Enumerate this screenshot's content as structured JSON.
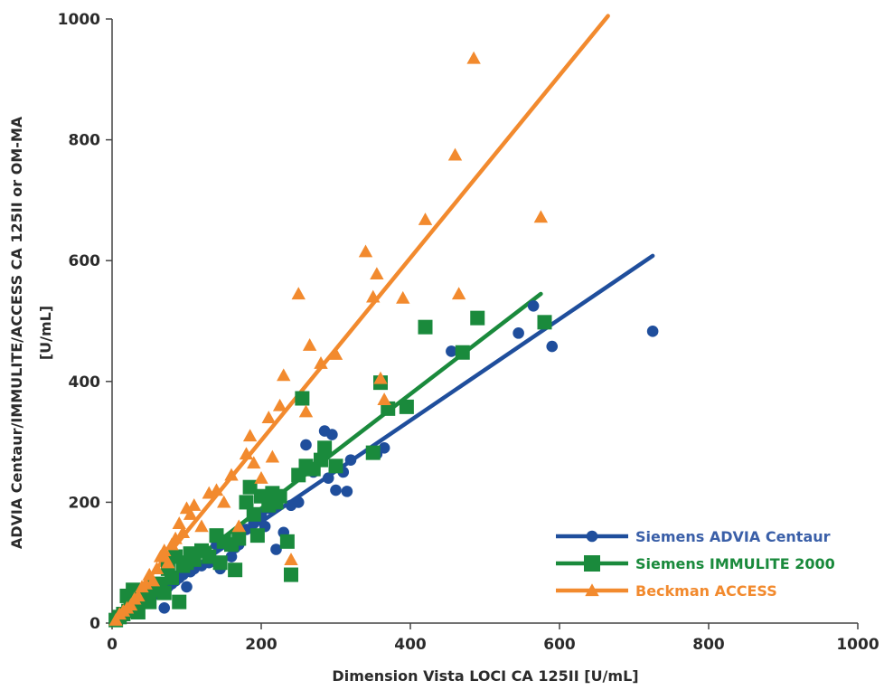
{
  "chart_data": {
    "type": "scatter",
    "title": "",
    "xlabel": "Dimension Vista LOCI CA 125II [U/mL]",
    "ylabel_line1": "ADVIA Centaur/IMMULITE/ACCESS CA 125II or OM-MA",
    "ylabel_line2": "[U/mL]",
    "xlim": [
      0,
      1000
    ],
    "ylim": [
      0,
      1000
    ],
    "xticks": [
      "0",
      "200",
      "400",
      "600",
      "800",
      "1000"
    ],
    "yticks": [
      "0",
      "200",
      "400",
      "600",
      "800",
      "1000"
    ],
    "legend_position": "bottom-right",
    "grid": false,
    "series": [
      {
        "name": "Siemens ADVIA Centaur",
        "color": "#1f4e9c",
        "label_color": "#3a5fa8",
        "marker": "circle",
        "fit_line": [
          [
            0,
            0
          ],
          [
            725,
            608
          ]
        ],
        "points": [
          [
            5,
            5
          ],
          [
            8,
            8
          ],
          [
            10,
            10
          ],
          [
            12,
            12
          ],
          [
            15,
            14
          ],
          [
            18,
            17
          ],
          [
            20,
            20
          ],
          [
            22,
            23
          ],
          [
            25,
            20
          ],
          [
            28,
            25
          ],
          [
            30,
            30
          ],
          [
            35,
            28
          ],
          [
            40,
            35
          ],
          [
            45,
            40
          ],
          [
            50,
            45
          ],
          [
            55,
            50
          ],
          [
            60,
            48
          ],
          [
            65,
            55
          ],
          [
            70,
            25
          ],
          [
            75,
            60
          ],
          [
            80,
            65
          ],
          [
            85,
            70
          ],
          [
            90,
            75
          ],
          [
            95,
            80
          ],
          [
            100,
            60
          ],
          [
            105,
            85
          ],
          [
            110,
            90
          ],
          [
            120,
            95
          ],
          [
            130,
            100
          ],
          [
            140,
            130
          ],
          [
            145,
            90
          ],
          [
            150,
            135
          ],
          [
            160,
            110
          ],
          [
            165,
            125
          ],
          [
            170,
            130
          ],
          [
            180,
            155
          ],
          [
            190,
            165
          ],
          [
            200,
            180
          ],
          [
            205,
            160
          ],
          [
            210,
            190
          ],
          [
            220,
            122
          ],
          [
            230,
            150
          ],
          [
            240,
            195
          ],
          [
            250,
            200
          ],
          [
            260,
            295
          ],
          [
            270,
            250
          ],
          [
            285,
            318
          ],
          [
            290,
            240
          ],
          [
            295,
            312
          ],
          [
            300,
            220
          ],
          [
            310,
            250
          ],
          [
            315,
            218
          ],
          [
            320,
            270
          ],
          [
            355,
            280
          ],
          [
            365,
            290
          ],
          [
            455,
            450
          ],
          [
            545,
            480
          ],
          [
            565,
            525
          ],
          [
            590,
            458
          ],
          [
            725,
            483
          ]
        ]
      },
      {
        "name": "Siemens IMMULITE 2000",
        "color": "#1a8a3c",
        "label_color": "#1a8a3c",
        "marker": "square",
        "fit_line": [
          [
            0,
            0
          ],
          [
            575,
            545
          ]
        ],
        "points": [
          [
            5,
            5
          ],
          [
            10,
            10
          ],
          [
            15,
            15
          ],
          [
            20,
            45
          ],
          [
            22,
            20
          ],
          [
            25,
            25
          ],
          [
            28,
            55
          ],
          [
            30,
            30
          ],
          [
            35,
            18
          ],
          [
            40,
            40
          ],
          [
            45,
            50
          ],
          [
            50,
            35
          ],
          [
            55,
            60
          ],
          [
            60,
            55
          ],
          [
            65,
            65
          ],
          [
            70,
            50
          ],
          [
            75,
            90
          ],
          [
            80,
            75
          ],
          [
            85,
            110
          ],
          [
            90,
            35
          ],
          [
            95,
            95
          ],
          [
            100,
            100
          ],
          [
            105,
            115
          ],
          [
            110,
            105
          ],
          [
            120,
            120
          ],
          [
            130,
            110
          ],
          [
            140,
            145
          ],
          [
            145,
            100
          ],
          [
            150,
            135
          ],
          [
            160,
            130
          ],
          [
            165,
            88
          ],
          [
            170,
            140
          ],
          [
            180,
            200
          ],
          [
            185,
            225
          ],
          [
            190,
            180
          ],
          [
            195,
            145
          ],
          [
            200,
            210
          ],
          [
            210,
            195
          ],
          [
            215,
            215
          ],
          [
            220,
            200
          ],
          [
            225,
            210
          ],
          [
            235,
            135
          ],
          [
            240,
            80
          ],
          [
            250,
            245
          ],
          [
            255,
            372
          ],
          [
            260,
            260
          ],
          [
            270,
            255
          ],
          [
            280,
            270
          ],
          [
            285,
            290
          ],
          [
            300,
            260
          ],
          [
            350,
            282
          ],
          [
            360,
            398
          ],
          [
            370,
            355
          ],
          [
            395,
            358
          ],
          [
            420,
            490
          ],
          [
            470,
            448
          ],
          [
            490,
            505
          ],
          [
            580,
            498
          ]
        ]
      },
      {
        "name": "Beckman ACCESS",
        "color": "#f28a2e",
        "label_color": "#f28a2e",
        "marker": "triangle",
        "fit_line": [
          [
            0,
            0
          ],
          [
            665,
            1005
          ]
        ],
        "points": [
          [
            5,
            5
          ],
          [
            10,
            15
          ],
          [
            15,
            20
          ],
          [
            20,
            25
          ],
          [
            25,
            30
          ],
          [
            30,
            40
          ],
          [
            35,
            45
          ],
          [
            40,
            60
          ],
          [
            45,
            65
          ],
          [
            50,
            80
          ],
          [
            55,
            70
          ],
          [
            60,
            90
          ],
          [
            65,
            110
          ],
          [
            70,
            120
          ],
          [
            75,
            100
          ],
          [
            80,
            130
          ],
          [
            85,
            140
          ],
          [
            90,
            165
          ],
          [
            95,
            150
          ],
          [
            100,
            190
          ],
          [
            105,
            180
          ],
          [
            110,
            195
          ],
          [
            120,
            160
          ],
          [
            130,
            215
          ],
          [
            140,
            220
          ],
          [
            150,
            200
          ],
          [
            160,
            245
          ],
          [
            170,
            160
          ],
          [
            180,
            280
          ],
          [
            185,
            310
          ],
          [
            190,
            265
          ],
          [
            200,
            240
          ],
          [
            210,
            340
          ],
          [
            215,
            275
          ],
          [
            225,
            360
          ],
          [
            230,
            410
          ],
          [
            240,
            105
          ],
          [
            250,
            545
          ],
          [
            260,
            350
          ],
          [
            265,
            460
          ],
          [
            280,
            430
          ],
          [
            300,
            445
          ],
          [
            340,
            615
          ],
          [
            350,
            540
          ],
          [
            355,
            578
          ],
          [
            360,
            405
          ],
          [
            365,
            370
          ],
          [
            390,
            538
          ],
          [
            420,
            668
          ],
          [
            460,
            775
          ],
          [
            465,
            545
          ],
          [
            485,
            935
          ],
          [
            575,
            672
          ]
        ]
      }
    ]
  }
}
